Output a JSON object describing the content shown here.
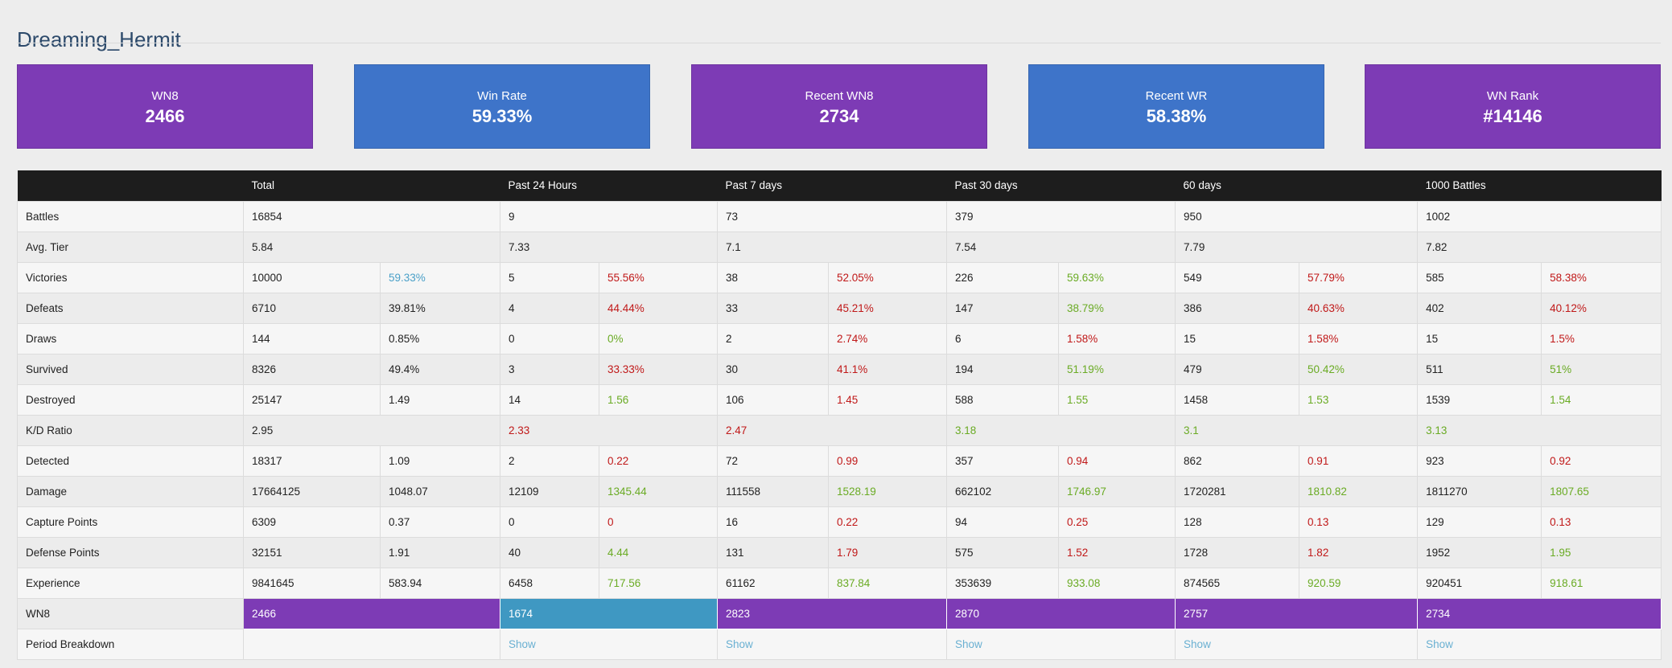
{
  "player_name": "Dreaming_Hermit",
  "cards": [
    {
      "label": "WN8",
      "value": "2466",
      "color": "#7d3bb5"
    },
    {
      "label": "Win Rate",
      "value": "59.33%",
      "color": "#3e74c9"
    },
    {
      "label": "Recent WN8",
      "value": "2734",
      "color": "#7d3bb5"
    },
    {
      "label": "Recent WR",
      "value": "58.38%",
      "color": "#3e74c9"
    },
    {
      "label": "WN Rank",
      "value": "#14146",
      "color": "#7d3bb5"
    }
  ],
  "table": {
    "headers": [
      "",
      "Total",
      "Past 24 Hours",
      "Past 7 days",
      "Past 30 days",
      "60 days",
      "1000 Battles"
    ],
    "rows": {
      "battles": {
        "label": "Battles",
        "values": [
          "16854",
          "9",
          "73",
          "379",
          "950",
          "1002"
        ]
      },
      "avg_tier": {
        "label": "Avg. Tier",
        "values": [
          "5.84",
          "7.33",
          "7.1",
          "7.54",
          "7.79",
          "7.82"
        ]
      },
      "victories": {
        "label": "Victories",
        "values": [
          "10000",
          "59.33%",
          "5",
          "55.56%",
          "38",
          "52.05%",
          "226",
          "59.63%",
          "549",
          "57.79%",
          "585",
          "58.38%"
        ]
      },
      "defeats": {
        "label": "Defeats",
        "values": [
          "6710",
          "39.81%",
          "4",
          "44.44%",
          "33",
          "45.21%",
          "147",
          "38.79%",
          "386",
          "40.63%",
          "402",
          "40.12%"
        ]
      },
      "draws": {
        "label": "Draws",
        "values": [
          "144",
          "0.85%",
          "0",
          "0%",
          "2",
          "2.74%",
          "6",
          "1.58%",
          "15",
          "1.58%",
          "15",
          "1.5%"
        ]
      },
      "survived": {
        "label": "Survived",
        "values": [
          "8326",
          "49.4%",
          "3",
          "33.33%",
          "30",
          "41.1%",
          "194",
          "51.19%",
          "479",
          "50.42%",
          "511",
          "51%"
        ]
      },
      "destroyed": {
        "label": "Destroyed",
        "values": [
          "25147",
          "1.49",
          "14",
          "1.56",
          "106",
          "1.45",
          "588",
          "1.55",
          "1458",
          "1.53",
          "1539",
          "1.54"
        ]
      },
      "kd_ratio": {
        "label": "K/D Ratio",
        "values": [
          "2.95",
          "2.33",
          "2.47",
          "3.18",
          "3.1",
          "3.13"
        ]
      },
      "detected": {
        "label": "Detected",
        "values": [
          "18317",
          "1.09",
          "2",
          "0.22",
          "72",
          "0.99",
          "357",
          "0.94",
          "862",
          "0.91",
          "923",
          "0.92"
        ]
      },
      "damage": {
        "label": "Damage",
        "values": [
          "17664125",
          "1048.07",
          "12109",
          "1345.44",
          "111558",
          "1528.19",
          "662102",
          "1746.97",
          "1720281",
          "1810.82",
          "1811270",
          "1807.65"
        ]
      },
      "capture_points": {
        "label": "Capture Points",
        "values": [
          "6309",
          "0.37",
          "0",
          "0",
          "16",
          "0.22",
          "94",
          "0.25",
          "128",
          "0.13",
          "129",
          "0.13"
        ]
      },
      "defense_points": {
        "label": "Defense Points",
        "values": [
          "32151",
          "1.91",
          "40",
          "4.44",
          "131",
          "1.79",
          "575",
          "1.52",
          "1728",
          "1.82",
          "1952",
          "1.95"
        ]
      },
      "experience": {
        "label": "Experience",
        "values": [
          "9841645",
          "583.94",
          "6458",
          "717.56",
          "61162",
          "837.84",
          "353639",
          "933.08",
          "874565",
          "920.59",
          "920451",
          "918.61"
        ]
      },
      "wn8": {
        "label": "WN8",
        "values": [
          "2466",
          "1674",
          "2823",
          "2870",
          "2757",
          "2734"
        ]
      },
      "period_breakdown": {
        "label": "Period Breakdown",
        "values": [
          "",
          "Show",
          "Show",
          "Show",
          "Show",
          "Show"
        ]
      }
    }
  },
  "colors": {
    "purple": "#7d3bb5",
    "blue": "#3e74c9",
    "teal": "#3f98c2",
    "green": "#6aab24",
    "red": "#c01818",
    "cyan": "#4aa0c8",
    "header_bg": "#1d1d1d"
  }
}
